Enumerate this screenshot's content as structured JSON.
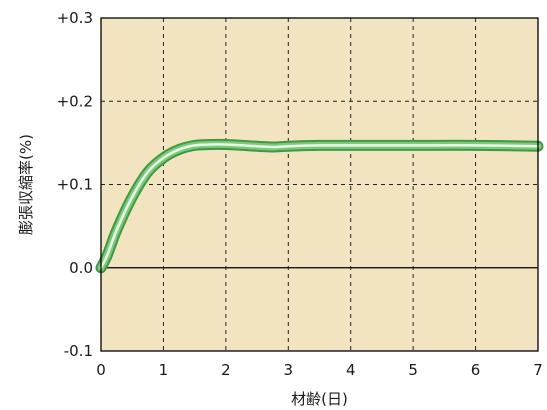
{
  "chart_data": {
    "type": "line",
    "title": "",
    "xlabel": "材齢(日)",
    "ylabel": "膨張収縮率(%)",
    "xlim": [
      0,
      7
    ],
    "ylim": [
      -0.1,
      0.3
    ],
    "x_ticks": [
      0,
      1,
      2,
      3,
      4,
      5,
      6,
      7
    ],
    "x_tick_labels": [
      "0",
      "1",
      "2",
      "3",
      "4",
      "5",
      "6",
      "7"
    ],
    "y_ticks": [
      -0.1,
      0.0,
      0.1,
      0.2,
      0.3
    ],
    "y_tick_labels": [
      "-0.1",
      "0.0",
      "+0.1",
      "+0.2",
      "+0.3"
    ],
    "grid": "dashed",
    "legend": "none",
    "series": [
      {
        "x": [
          0,
          0.1,
          0.25,
          0.5,
          0.75,
          1.0,
          1.25,
          1.5,
          1.75,
          2.0,
          2.5,
          2.75,
          3.0,
          3.5,
          4.0,
          5.0,
          6.0,
          7.0
        ],
        "values": [
          0.0,
          0.015,
          0.045,
          0.085,
          0.115,
          0.132,
          0.142,
          0.147,
          0.148,
          0.148,
          0.146,
          0.145,
          0.146,
          0.147,
          0.147,
          0.147,
          0.147,
          0.146
        ]
      }
    ],
    "colors": {
      "plot_background": "#f2e4c0",
      "line_dark": "#3f9a3f",
      "line_mid": "#7cc97c",
      "line_highlight": "#e7f7e7",
      "grid": "#222222",
      "zero_line": "#000000"
    }
  }
}
